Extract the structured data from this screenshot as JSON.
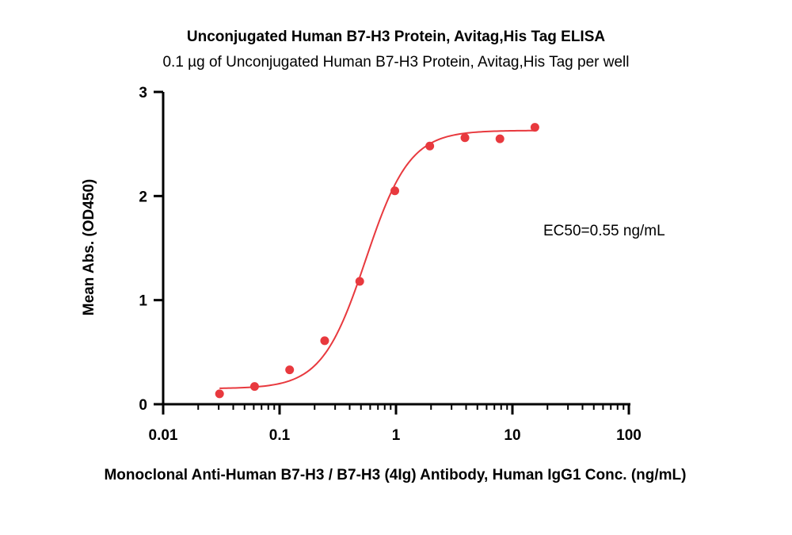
{
  "chart_data": {
    "type": "scatter",
    "title": "Unconjugated Human B7-H3 Protein, Avitag,His Tag ELISA",
    "subtitle": "0.1 µg of Unconjugated Human B7-H3 Protein, Avitag,His Tag per well",
    "xlabel": "Monoclonal Anti-Human B7-H3 / B7-H3 (4Ig) Antibody, Human IgG1 Conc. (ng/mL)",
    "ylabel": "Mean Abs. (OD450)",
    "x_scale": "log",
    "xlim": [
      0.01,
      100
    ],
    "ylim": [
      0,
      3
    ],
    "x_ticks": [
      "0.01",
      "0.1",
      "1",
      "10",
      "100"
    ],
    "y_ticks": [
      "0",
      "1",
      "2",
      "3"
    ],
    "annotation": "EC50=0.55 ng/mL",
    "grid": false,
    "series": [
      {
        "color": "#e8393e",
        "points": [
          {
            "x": 0.0305,
            "y": 0.1
          },
          {
            "x": 0.061,
            "y": 0.17
          },
          {
            "x": 0.122,
            "y": 0.33
          },
          {
            "x": 0.244,
            "y": 0.61
          },
          {
            "x": 0.488,
            "y": 1.18
          },
          {
            "x": 0.977,
            "y": 2.05
          },
          {
            "x": 1.95,
            "y": 2.48
          },
          {
            "x": 3.91,
            "y": 2.56
          },
          {
            "x": 7.81,
            "y": 2.55
          },
          {
            "x": 15.6,
            "y": 2.66
          }
        ],
        "fit": {
          "model": "4PL",
          "bottom": 0.15,
          "top": 2.63,
          "ec50": 0.55,
          "hill": 2.3
        }
      }
    ]
  }
}
